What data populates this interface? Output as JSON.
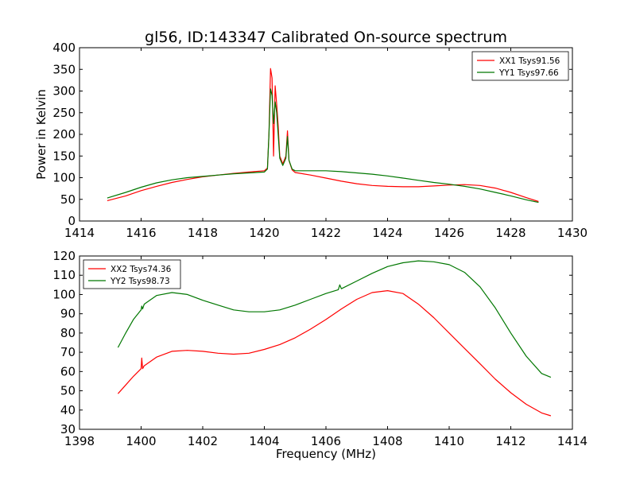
{
  "chart_data": [
    {
      "type": "line",
      "title": "gl56, ID:143347 Calibrated On-source spectrum",
      "xlabel": "",
      "ylabel": "Power in Kelvin",
      "xlim": [
        1414,
        1430
      ],
      "ylim": [
        0,
        400
      ],
      "xticks": [
        "1414",
        "1416",
        "1418",
        "1420",
        "1422",
        "1424",
        "1426",
        "1428",
        "1430"
      ],
      "yticks": [
        "0",
        "50",
        "100",
        "150",
        "200",
        "250",
        "300",
        "350",
        "400"
      ],
      "legend_position": "top-right",
      "series": [
        {
          "name": "XX1 Tsys91.56",
          "color": "#ff0000",
          "x": [
            1414.9,
            1415.5,
            1416,
            1416.5,
            1417,
            1417.5,
            1418,
            1418.5,
            1419,
            1419.5,
            1420.0,
            1420.1,
            1420.15,
            1420.2,
            1420.25,
            1420.3,
            1420.35,
            1420.4,
            1420.45,
            1420.5,
            1420.6,
            1420.7,
            1420.75,
            1420.8,
            1420.9,
            1421.0,
            1421.5,
            1422,
            1422.5,
            1423,
            1423.5,
            1424,
            1424.5,
            1425,
            1425.5,
            1426,
            1426.5,
            1427,
            1427.5,
            1428,
            1428.5,
            1428.9
          ],
          "y": [
            47,
            58,
            70,
            80,
            89,
            96,
            102,
            106,
            110,
            113,
            116,
            122,
            200,
            352,
            330,
            150,
            312,
            270,
            220,
            150,
            132,
            150,
            208,
            140,
            118,
            112,
            106,
            99,
            92,
            86,
            82,
            80,
            79,
            79,
            81,
            83,
            84,
            82,
            76,
            66,
            54,
            45
          ]
        },
        {
          "name": "YY1 Tsys97.66",
          "color": "#007700",
          "x": [
            1414.9,
            1415.5,
            1416,
            1416.5,
            1417,
            1417.5,
            1418,
            1418.5,
            1419,
            1419.5,
            1420.0,
            1420.1,
            1420.15,
            1420.2,
            1420.25,
            1420.3,
            1420.35,
            1420.4,
            1420.45,
            1420.5,
            1420.6,
            1420.7,
            1420.75,
            1420.8,
            1420.9,
            1421.0,
            1421.5,
            1422,
            1422.5,
            1423,
            1423.5,
            1424,
            1424.5,
            1425,
            1425.5,
            1426,
            1426.5,
            1427,
            1427.5,
            1428,
            1428.5,
            1428.9
          ],
          "y": [
            53,
            66,
            78,
            88,
            95,
            100,
            103,
            106,
            109,
            111,
            113,
            120,
            200,
            305,
            290,
            225,
            275,
            250,
            200,
            145,
            128,
            145,
            195,
            140,
            120,
            116,
            116,
            116,
            114,
            111,
            108,
            104,
            99,
            94,
            89,
            85,
            80,
            74,
            66,
            58,
            49,
            43
          ]
        }
      ]
    },
    {
      "type": "line",
      "title": "",
      "xlabel": "Frequency (MHz)",
      "ylabel": "",
      "xlim": [
        1398,
        1414
      ],
      "ylim": [
        30,
        120
      ],
      "xticks": [
        "1398",
        "1400",
        "1402",
        "1404",
        "1406",
        "1408",
        "1410",
        "1412",
        "1414"
      ],
      "yticks": [
        "30",
        "40",
        "50",
        "60",
        "70",
        "80",
        "90",
        "100",
        "110",
        "120"
      ],
      "legend_position": "top-left",
      "series": [
        {
          "name": "XX2 Tsys74.36",
          "color": "#ff0000",
          "x": [
            1399.25,
            1399.5,
            1399.75,
            1400.0,
            1400.02,
            1400.05,
            1400.1,
            1400.5,
            1401.0,
            1401.5,
            1402.0,
            1402.5,
            1403.0,
            1403.5,
            1404.0,
            1404.5,
            1405.0,
            1405.5,
            1406.0,
            1406.5,
            1407.0,
            1407.5,
            1408.0,
            1408.5,
            1409.0,
            1409.5,
            1410.0,
            1410.5,
            1411.0,
            1411.5,
            1412.0,
            1412.5,
            1413.0,
            1413.3
          ],
          "y": [
            48.5,
            53,
            57.5,
            61.5,
            67,
            61.5,
            63,
            67.5,
            70.5,
            71,
            70.5,
            69.5,
            69,
            69.5,
            71.5,
            74,
            77.5,
            82,
            87,
            92.5,
            97.5,
            101,
            102,
            100.5,
            95,
            88,
            80,
            72,
            64,
            56,
            49,
            43,
            38.5,
            37
          ]
        },
        {
          "name": "YY2 Tsys98.73",
          "color": "#007700",
          "x": [
            1399.25,
            1399.5,
            1399.75,
            1400.0,
            1400.02,
            1400.05,
            1400.1,
            1400.5,
            1401.0,
            1401.5,
            1402.0,
            1402.5,
            1403.0,
            1403.5,
            1404.0,
            1404.5,
            1405.0,
            1405.5,
            1406.0,
            1406.4,
            1406.45,
            1406.5,
            1407.0,
            1407.5,
            1408.0,
            1408.5,
            1409.0,
            1409.5,
            1410.0,
            1410.5,
            1411.0,
            1411.5,
            1412.0,
            1412.5,
            1413.0,
            1413.3
          ],
          "y": [
            72.5,
            80,
            87,
            92,
            94,
            92.5,
            95,
            99.5,
            101,
            100,
            97,
            94.5,
            92,
            91,
            91,
            92,
            94.5,
            97.5,
            100.5,
            102.5,
            105,
            103,
            107,
            111,
            114.5,
            116.5,
            117.5,
            117,
            115.5,
            111.5,
            104,
            93,
            80,
            68,
            59,
            57
          ]
        }
      ]
    }
  ]
}
